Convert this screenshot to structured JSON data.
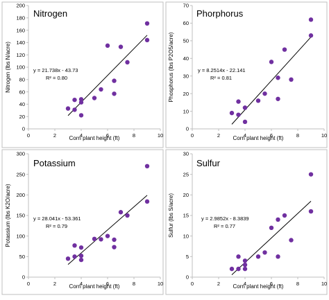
{
  "colors": {
    "point": "#7030A0",
    "trend": "#000000",
    "axis": "#bfbfbf",
    "panel_border": "#bfbfbf",
    "text": "#000000"
  },
  "chart_data": [
    {
      "type": "scatter",
      "title": "Nitrogen",
      "xlabel": "Corn plant height (ft)",
      "ylabel": "Nitrogen (lbs N/acre)",
      "xlim": [
        0,
        10
      ],
      "ylim": [
        0,
        200
      ],
      "xticks": [
        0,
        2,
        4,
        6,
        8,
        10
      ],
      "yticks": [
        0,
        20,
        40,
        60,
        80,
        100,
        120,
        140,
        160,
        180,
        200
      ],
      "x_tick_labels": [
        "0",
        "2",
        "4",
        "6",
        "8",
        "10"
      ],
      "y_tick_labels": [
        "0",
        "20",
        "40",
        "60",
        "80",
        "100",
        "120",
        "140",
        "160",
        "180",
        "200"
      ],
      "points": [
        {
          "x": 3,
          "y": 33
        },
        {
          "x": 3.5,
          "y": 31
        },
        {
          "x": 3.5,
          "y": 47
        },
        {
          "x": 4,
          "y": 22
        },
        {
          "x": 4,
          "y": 43
        },
        {
          "x": 4,
          "y": 48
        },
        {
          "x": 5,
          "y": 50
        },
        {
          "x": 5.5,
          "y": 64
        },
        {
          "x": 6,
          "y": 135
        },
        {
          "x": 6.5,
          "y": 57
        },
        {
          "x": 6.5,
          "y": 78
        },
        {
          "x": 7,
          "y": 133
        },
        {
          "x": 7.5,
          "y": 108
        },
        {
          "x": 9,
          "y": 171
        },
        {
          "x": 9,
          "y": 144
        }
      ],
      "trendline": {
        "slope": 21.738,
        "intercept": -43.73,
        "x_range": [
          3,
          9
        ]
      },
      "equation": "y = 21.738x - 43.73",
      "r2": "R² = 0.80"
    },
    {
      "type": "scatter",
      "title": "Phorphorus",
      "xlabel": "Corn plant height (ft)",
      "ylabel": "Phosphorus (lbs P2O5/acre)",
      "xlim": [
        0,
        10
      ],
      "ylim": [
        0,
        70
      ],
      "xticks": [
        0,
        2,
        4,
        6,
        8,
        10
      ],
      "yticks": [
        0,
        10,
        20,
        30,
        40,
        50,
        60,
        70
      ],
      "x_tick_labels": [
        "0",
        "2",
        "4",
        "6",
        "8",
        "10"
      ],
      "y_tick_labels": [
        "0",
        "10",
        "20",
        "30",
        "40",
        "50",
        "60",
        "70"
      ],
      "points": [
        {
          "x": 3,
          "y": 9
        },
        {
          "x": 3.5,
          "y": 8
        },
        {
          "x": 3.5,
          "y": 15.5
        },
        {
          "x": 4,
          "y": 4
        },
        {
          "x": 4,
          "y": 12
        },
        {
          "x": 4,
          "y": 12
        },
        {
          "x": 5,
          "y": 16
        },
        {
          "x": 5.5,
          "y": 20
        },
        {
          "x": 6,
          "y": 38
        },
        {
          "x": 6.5,
          "y": 17
        },
        {
          "x": 6.5,
          "y": 29
        },
        {
          "x": 7,
          "y": 45
        },
        {
          "x": 7.5,
          "y": 28
        },
        {
          "x": 9,
          "y": 62
        },
        {
          "x": 9,
          "y": 53
        }
      ],
      "trendline": {
        "slope": 8.2514,
        "intercept": -22.141,
        "x_range": [
          3,
          9
        ]
      },
      "equation": "y = 8.2514x - 22.141",
      "r2": "R² = 0.81"
    },
    {
      "type": "scatter",
      "title": "Potassium",
      "xlabel": "Corn plant height (ft)",
      "ylabel": "Potassium (lbs K2O/acre)",
      "xlim": [
        0,
        10
      ],
      "ylim": [
        0,
        300
      ],
      "xticks": [
        0,
        2,
        4,
        6,
        8,
        10
      ],
      "yticks": [
        0,
        50,
        100,
        150,
        200,
        250,
        300
      ],
      "x_tick_labels": [
        "0",
        "2",
        "4",
        "6",
        "8",
        "10"
      ],
      "y_tick_labels": [
        "0",
        "50",
        "100",
        "150",
        "200",
        "250",
        "300"
      ],
      "points": [
        {
          "x": 3,
          "y": 45
        },
        {
          "x": 3.5,
          "y": 50
        },
        {
          "x": 3.5,
          "y": 77
        },
        {
          "x": 4,
          "y": 42
        },
        {
          "x": 4,
          "y": 52
        },
        {
          "x": 4,
          "y": 72
        },
        {
          "x": 5,
          "y": 93
        },
        {
          "x": 5.5,
          "y": 92
        },
        {
          "x": 6,
          "y": 100
        },
        {
          "x": 6.5,
          "y": 73
        },
        {
          "x": 6.5,
          "y": 91
        },
        {
          "x": 7,
          "y": 158
        },
        {
          "x": 7.5,
          "y": 150
        },
        {
          "x": 9,
          "y": 270
        },
        {
          "x": 9,
          "y": 184
        }
      ],
      "trendline": {
        "slope": 28.041,
        "intercept": -53.361,
        "x_range": [
          3,
          9
        ]
      },
      "equation": "y = 28.041x - 53.361",
      "r2": "R² = 0.79"
    },
    {
      "type": "scatter",
      "title": "Sulfur",
      "xlabel": "Corn plant height (ft)",
      "ylabel": "Sulfur (lbs S/acre)",
      "xlim": [
        0,
        10
      ],
      "ylim": [
        0,
        30
      ],
      "xticks": [
        0,
        2,
        4,
        6,
        8,
        10
      ],
      "yticks": [
        0,
        5,
        10,
        15,
        20,
        25,
        30
      ],
      "x_tick_labels": [
        "0",
        "2",
        "4",
        "6",
        "8",
        "10"
      ],
      "y_tick_labels": [
        "0",
        "5",
        "10",
        "15",
        "20",
        "25",
        "30"
      ],
      "points": [
        {
          "x": 3,
          "y": 2
        },
        {
          "x": 3.5,
          "y": 2
        },
        {
          "x": 3.5,
          "y": 5
        },
        {
          "x": 4,
          "y": 2
        },
        {
          "x": 4,
          "y": 3
        },
        {
          "x": 4,
          "y": 4
        },
        {
          "x": 5,
          "y": 5
        },
        {
          "x": 5.5,
          "y": 6
        },
        {
          "x": 6,
          "y": 12
        },
        {
          "x": 6.5,
          "y": 5
        },
        {
          "x": 6.5,
          "y": 14
        },
        {
          "x": 7,
          "y": 15
        },
        {
          "x": 7.5,
          "y": 9
        },
        {
          "x": 9,
          "y": 25
        },
        {
          "x": 9,
          "y": 16
        }
      ],
      "trendline": {
        "slope": 2.9852,
        "intercept": -8.3839,
        "x_range": [
          3,
          9
        ]
      },
      "equation": "y = 2.9852x - 8.3839",
      "r2": "R² = 0.77"
    }
  ]
}
